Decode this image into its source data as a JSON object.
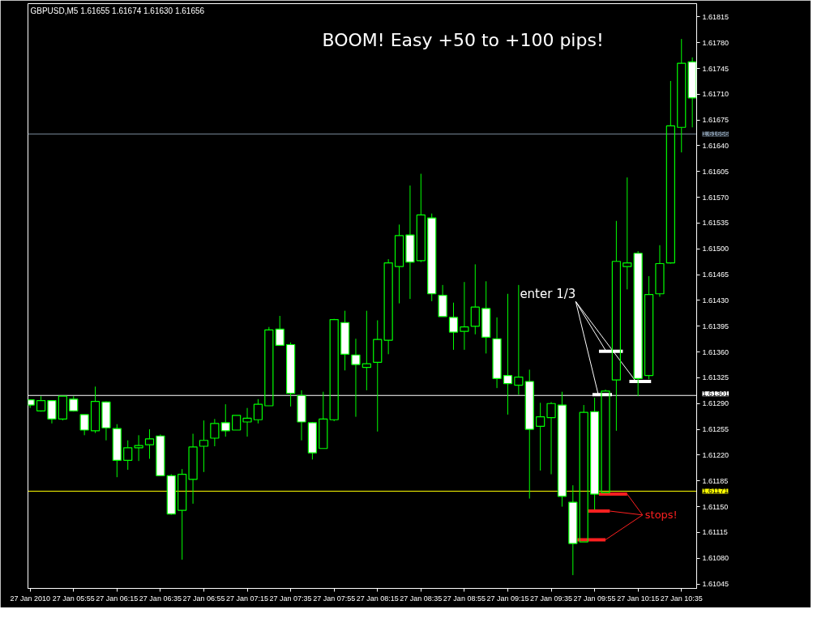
{
  "chart_data": {
    "type": "candlestick",
    "title": "GBPUSD,M5 1.61655 1.61674 1.61630 1.61656",
    "annotations": [
      "BOOM! Easy +50 to +100 pips!"
    ],
    "color": "#00ff00",
    "x": [
      "2010-01-27T05:35",
      "2010-01-27T05:40",
      "2010-01-27T05:45",
      "2010-01-27T05:50",
      "2010-01-27T05:55",
      "2010-01-27T06:00",
      "2010-01-27T06:05",
      "2010-01-27T06:10",
      "2010-01-27T06:15",
      "2010-01-27T06:20",
      "2010-01-27T06:25",
      "2010-01-27T06:30",
      "2010-01-27T06:35",
      "2010-01-27T06:40",
      "2010-01-27T06:45",
      "2010-01-27T06:50",
      "2010-01-27T06:55",
      "2010-01-27T07:00",
      "2010-01-27T07:05",
      "2010-01-27T07:10",
      "2010-01-27T07:15",
      "2010-01-27T07:20",
      "2010-01-27T07:25",
      "2010-01-27T07:30",
      "2010-01-27T07:35",
      "2010-01-27T07:40",
      "2010-01-27T07:45",
      "2010-01-27T07:50",
      "2010-01-27T07:55",
      "2010-01-27T08:00",
      "2010-01-27T08:05",
      "2010-01-27T08:10",
      "2010-01-27T08:15",
      "2010-01-27T08:20",
      "2010-01-27T08:25",
      "2010-01-27T08:30",
      "2010-01-27T08:35",
      "2010-01-27T08:40",
      "2010-01-27T08:45",
      "2010-01-27T08:50",
      "2010-01-27T08:55",
      "2010-01-27T09:00",
      "2010-01-27T09:05",
      "2010-01-27T09:10",
      "2010-01-27T09:15",
      "2010-01-27T09:20",
      "2010-01-27T09:25",
      "2010-01-27T09:30",
      "2010-01-27T09:35",
      "2010-01-27T09:40",
      "2010-01-27T09:45",
      "2010-01-27T09:50",
      "2010-01-27T09:55",
      "2010-01-27T10:00",
      "2010-01-27T10:05",
      "2010-01-27T10:10",
      "2010-01-27T10:15",
      "2010-01-27T10:20",
      "2010-01-27T10:25",
      "2010-01-27T10:30",
      "2010-01-27T10:35",
      "2010-01-27T10:40"
    ],
    "ohlc": [
      [
        1.61295,
        1.61295,
        1.61284,
        1.61288
      ],
      [
        1.6128,
        1.613,
        1.61279,
        1.61294
      ],
      [
        1.61294,
        1.61294,
        1.61263,
        1.61269
      ],
      [
        1.61269,
        1.613,
        1.61267,
        1.613
      ],
      [
        1.61296,
        1.613,
        1.61279,
        1.6128
      ],
      [
        1.61275,
        1.61275,
        1.61247,
        1.61254
      ],
      [
        1.61253,
        1.61313,
        1.6125,
        1.61293
      ],
      [
        1.61292,
        1.61293,
        1.6124,
        1.61257
      ],
      [
        1.61256,
        1.61262,
        1.6119,
        1.61213
      ],
      [
        1.61213,
        1.6124,
        1.612,
        1.6123
      ],
      [
        1.6123,
        1.61247,
        1.61212,
        1.61233
      ],
      [
        1.61234,
        1.61255,
        1.61215,
        1.61242
      ],
      [
        1.61246,
        1.61248,
        1.61192,
        1.61192
      ],
      [
        1.61192,
        1.61194,
        1.61139,
        1.6114
      ],
      [
        1.61145,
        1.61201,
        1.61078,
        1.61194
      ],
      [
        1.61187,
        1.61249,
        1.61154,
        1.61231
      ],
      [
        1.61232,
        1.61267,
        1.61197,
        1.6124
      ],
      [
        1.61243,
        1.61269,
        1.61232,
        1.61263
      ],
      [
        1.61264,
        1.61289,
        1.61245,
        1.61253
      ],
      [
        1.61254,
        1.61274,
        1.61254,
        1.61274
      ],
      [
        1.61265,
        1.61284,
        1.61245,
        1.6127
      ],
      [
        1.61268,
        1.61296,
        1.61263,
        1.61289
      ],
      [
        1.61287,
        1.61394,
        1.61287,
        1.6139
      ],
      [
        1.61391,
        1.61409,
        1.61369,
        1.61369
      ],
      [
        1.6137,
        1.61373,
        1.61286,
        1.61304
      ],
      [
        1.61301,
        1.61308,
        1.6124,
        1.61265
      ],
      [
        1.61264,
        1.61265,
        1.61214,
        1.61223
      ],
      [
        1.61229,
        1.61306,
        1.61229,
        1.61269
      ],
      [
        1.61268,
        1.61405,
        1.61266,
        1.61404
      ],
      [
        1.614,
        1.61416,
        1.61335,
        1.61357
      ],
      [
        1.61356,
        1.61378,
        1.61272,
        1.61343
      ],
      [
        1.61339,
        1.61416,
        1.61308,
        1.61344
      ],
      [
        1.61346,
        1.61403,
        1.61252,
        1.61377
      ],
      [
        1.61376,
        1.61486,
        1.61357,
        1.61481
      ],
      [
        1.61476,
        1.61533,
        1.61426,
        1.61518
      ],
      [
        1.61519,
        1.61586,
        1.61432,
        1.61482
      ],
      [
        1.61484,
        1.61602,
        1.61482,
        1.61546
      ],
      [
        1.61542,
        1.61548,
        1.61429,
        1.61439
      ],
      [
        1.61437,
        1.61451,
        1.61408,
        1.61408
      ],
      [
        1.61407,
        1.61427,
        1.61363,
        1.61387
      ],
      [
        1.61388,
        1.61455,
        1.61363,
        1.61394
      ],
      [
        1.61395,
        1.61479,
        1.61384,
        1.61421
      ],
      [
        1.61419,
        1.61456,
        1.61358,
        1.6138
      ],
      [
        1.61378,
        1.61407,
        1.61311,
        1.61324
      ],
      [
        1.61328,
        1.61439,
        1.61275,
        1.61317
      ],
      [
        1.61315,
        1.61451,
        1.61302,
        1.61326
      ],
      [
        1.6132,
        1.61336,
        1.61161,
        1.61255
      ],
      [
        1.61259,
        1.61291,
        1.61199,
        1.61272
      ],
      [
        1.61271,
        1.61292,
        1.61194,
        1.6129
      ],
      [
        1.61288,
        1.61306,
        1.6115,
        1.61164
      ],
      [
        1.61156,
        1.61179,
        1.61057,
        1.611
      ],
      [
        1.61102,
        1.61288,
        1.61102,
        1.61278
      ],
      [
        1.61279,
        1.61298,
        1.61146,
        1.61167
      ],
      [
        1.61169,
        1.61309,
        1.61169,
        1.61307
      ],
      [
        1.61322,
        1.61538,
        1.61253,
        1.61483
      ],
      [
        1.61476,
        1.61597,
        1.61445,
        1.61481
      ],
      [
        1.61494,
        1.61497,
        1.613,
        1.61324
      ],
      [
        1.61328,
        1.61463,
        1.61323,
        1.61438
      ],
      [
        1.61439,
        1.61505,
        1.61435,
        1.6148
      ],
      [
        1.61481,
        1.61728,
        1.6148,
        1.61667
      ],
      [
        1.61665,
        1.61785,
        1.61631,
        1.61752
      ],
      [
        1.61754,
        1.6176,
        1.61665,
        1.61705
      ]
    ],
    "xlim": [
      "2010-01-27T05:34",
      "2010-01-27T10:42"
    ],
    "xticks": [
      {
        "value": "2010-01-27T05:35",
        "label": "27 Jan 2010"
      },
      {
        "value": "2010-01-27T05:55",
        "label": "27 Jan 05:55"
      },
      {
        "value": "2010-01-27T06:15",
        "label": "27 Jan 06:15"
      },
      {
        "value": "2010-01-27T06:35",
        "label": "27 Jan 06:35"
      },
      {
        "value": "2010-01-27T06:55",
        "label": "27 Jan 06:55"
      },
      {
        "value": "2010-01-27T07:15",
        "label": "27 Jan 07:15"
      },
      {
        "value": "2010-01-27T07:35",
        "label": "27 Jan 07:35"
      },
      {
        "value": "2010-01-27T07:55",
        "label": "27 Jan 07:55"
      },
      {
        "value": "2010-01-27T08:15",
        "label": "27 Jan 08:15"
      },
      {
        "value": "2010-01-27T08:35",
        "label": "27 Jan 08:35"
      },
      {
        "value": "2010-01-27T08:55",
        "label": "27 Jan 08:55"
      },
      {
        "value": "2010-01-27T09:15",
        "label": "27 Jan 09:15"
      },
      {
        "value": "2010-01-27T09:35",
        "label": "27 Jan 09:35"
      },
      {
        "value": "2010-01-27T09:55",
        "label": "27 Jan 09:55"
      },
      {
        "value": "2010-01-27T10:15",
        "label": "27 Jan 10:15"
      },
      {
        "value": "2010-01-27T10:35",
        "label": "27 Jan 10:35"
      }
    ],
    "ylim": [
      1.61039,
      1.61833
    ],
    "yticks": [
      {
        "value": 1.61045,
        "label": "1.61045"
      },
      {
        "value": 1.6108,
        "label": "1.61080"
      },
      {
        "value": 1.61115,
        "label": "1.61115"
      },
      {
        "value": 1.6115,
        "label": "1.61150"
      },
      {
        "value": 1.61185,
        "label": "1.61185"
      },
      {
        "value": 1.6122,
        "label": "1.61220"
      },
      {
        "value": 1.61255,
        "label": "1.61255"
      },
      {
        "value": 1.6129,
        "label": "1.61290"
      },
      {
        "value": 1.61325,
        "label": "1.61325"
      },
      {
        "value": 1.6136,
        "label": "1.61360"
      },
      {
        "value": 1.61395,
        "label": "1.61395"
      },
      {
        "value": 1.6143,
        "label": "1.61430"
      },
      {
        "value": 1.61465,
        "label": "1.61465"
      },
      {
        "value": 1.615,
        "label": "1.61500"
      },
      {
        "value": 1.61535,
        "label": "1.61535"
      },
      {
        "value": 1.6157,
        "label": "1.61570"
      },
      {
        "value": 1.61605,
        "label": "1.61605"
      },
      {
        "value": 1.6164,
        "label": "1.61640"
      },
      {
        "value": 1.61675,
        "label": "1.61675"
      },
      {
        "value": 1.6171,
        "label": "1.61710"
      },
      {
        "value": 1.61745,
        "label": "1.61745"
      },
      {
        "value": 1.6178,
        "label": "1.61780"
      },
      {
        "value": 1.61815,
        "label": "1.61815"
      }
    ],
    "ref_lines": [
      {
        "axis": "y",
        "value": 1.61656,
        "label": "1.61656",
        "color": "#778899"
      },
      {
        "axis": "y",
        "value": 1.61301,
        "label": "1.61301",
        "color": "#ffffff"
      },
      {
        "axis": "y",
        "value": 1.61171,
        "label": "1.61171",
        "color": "#ffff00"
      }
    ],
    "series": [
      {
        "type": "line",
        "name": "enter 1/3",
        "color": "#ffffff",
        "x": [
          "2010-01-27T09:54",
          "2010-01-27T10:03",
          null,
          "2010-01-27T09:57",
          "2010-01-27T10:08",
          null,
          "2010-01-27T10:11",
          "2010-01-27T10:21"
        ],
        "values": [
          1.61302,
          1.61302,
          null,
          1.61361,
          1.61361,
          null,
          1.6132,
          1.6132
        ]
      },
      {
        "type": "line",
        "name": "stops!",
        "color": "#ff2020",
        "x": [
          "2010-01-27T09:57",
          "2010-01-27T10:10",
          null,
          "2010-01-27T09:52",
          "2010-01-27T10:02",
          null,
          "2010-01-27T09:47",
          "2010-01-27T10:00"
        ],
        "values": [
          1.61167,
          1.61167,
          null,
          1.61144,
          1.61144,
          null,
          1.61105,
          1.61105
        ]
      }
    ]
  }
}
